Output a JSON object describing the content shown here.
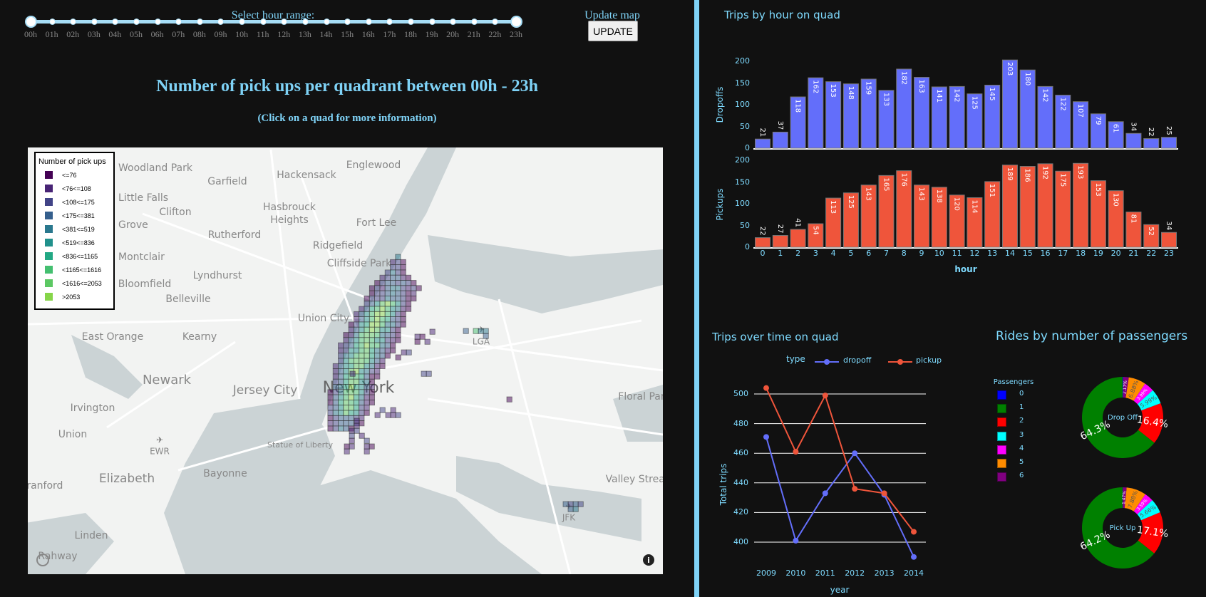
{
  "controls": {
    "slider_label": "Select hour range:",
    "hours": [
      "00h",
      "01h",
      "02h",
      "03h",
      "04h",
      "05h",
      "06h",
      "07h",
      "08h",
      "09h",
      "10h",
      "11h",
      "12h",
      "13h",
      "14h",
      "15h",
      "16h",
      "17h",
      "18h",
      "19h",
      "20h",
      "21h",
      "22h",
      "23h"
    ],
    "range": [
      "00h",
      "23h"
    ],
    "update_label": "Update map",
    "update_button": "UPDATE"
  },
  "map": {
    "title": "Number of pick ups per quadrant between 00h - 23h",
    "subtitle": "(Click on a quad for more information)",
    "legend": {
      "title": "Number of pick ups",
      "bins": [
        "<=76",
        "<76<=108",
        "<108<=175",
        "<175<=381",
        "<381<=519",
        "<519<=836",
        "<836<=1165",
        "<1165<=1616",
        "<1616<=2053",
        ">2053"
      ],
      "colors": [
        "#440154",
        "#482475",
        "#414487",
        "#355f8d",
        "#2a788e",
        "#21918c",
        "#22a884",
        "#44bf70",
        "#5cc863",
        "#86d549"
      ]
    },
    "places": [
      "Woodland Park",
      "Englewood",
      "Garfield",
      "Hackensack",
      "Little Falls",
      "Clifton",
      "Hasbrouck",
      "Heights",
      "Grove",
      "Fort Lee",
      "Rutherford",
      "Ridgefield",
      "Montclair",
      "Cliffside Park",
      "Lyndhurst",
      "Bloomfield",
      "Belleville",
      "Union City",
      "East Orange",
      "Kearny",
      "LGA",
      "Newark",
      "Jersey City",
      "New York",
      "Floral Park",
      "Irvington",
      "Union",
      "EWR",
      "Statue of Liberty",
      "Bayonne",
      "Elizabeth",
      "Valley Stream",
      "JFK",
      "Linden",
      "Rahway",
      "Cranford"
    ],
    "icons": [
      "airport-icon",
      "mapbox-logo-icon",
      "info-icon"
    ]
  },
  "chart_data": [
    {
      "type": "bar",
      "title": "Trips by hour on quad",
      "xlabel": "hour",
      "categories": [
        0,
        1,
        2,
        3,
        4,
        5,
        6,
        7,
        8,
        9,
        10,
        11,
        12,
        13,
        14,
        15,
        16,
        17,
        18,
        19,
        20,
        21,
        22,
        23
      ],
      "series": [
        {
          "name": "Dropoffs",
          "color": "#636efa",
          "values": [
            21,
            37,
            118,
            162,
            153,
            148,
            159,
            133,
            182,
            163,
            141,
            142,
            125,
            145,
            203,
            180,
            142,
            122,
            107,
            79,
            61,
            34,
            22,
            25
          ]
        },
        {
          "name": "Pickups",
          "color": "#ef553b",
          "values": [
            22,
            27,
            41,
            54,
            113,
            125,
            143,
            165,
            176,
            143,
            138,
            120,
            114,
            151,
            189,
            186,
            192,
            175,
            193,
            153,
            130,
            81,
            52,
            34
          ]
        }
      ],
      "ylim": [
        0,
        210
      ],
      "yticks": [
        0,
        50,
        100,
        150,
        200
      ]
    },
    {
      "type": "line",
      "title": "Trips over time on quad",
      "xlabel": "year",
      "ylabel": "Total trips",
      "legend_title": "type",
      "x": [
        2009,
        2010,
        2011,
        2012,
        2013,
        2014
      ],
      "series": [
        {
          "name": "dropoff",
          "color": "#636efa",
          "values": [
            471,
            401,
            433,
            460,
            432,
            390
          ]
        },
        {
          "name": "pickup",
          "color": "#ef553b",
          "values": [
            504,
            461,
            499,
            436,
            433,
            407
          ]
        }
      ],
      "ylim": [
        385,
        508
      ],
      "yticks": [
        400,
        420,
        440,
        460,
        480,
        500
      ],
      "grid": true,
      "legend_position": "top"
    },
    {
      "type": "pie",
      "title": "Rides by number of passengers",
      "legend_title": "Passengers",
      "categories": [
        "0",
        "1",
        "2",
        "3",
        "4",
        "5",
        "6"
      ],
      "colors": [
        "#0000ff",
        "#008000",
        "#ff0000",
        "#00ffff",
        "#ff00ff",
        "#ff8c00",
        "#800080"
      ],
      "donuts": [
        {
          "label": "Drop Off",
          "values": [
            0.27,
            64.3,
            16.4,
            5.99,
            3.99,
            6.88,
            2.17
          ],
          "text": [
            "",
            "64.3%",
            "16.4%",
            "5.99%",
            "3.99%",
            "6.88%",
            "2.17%"
          ]
        },
        {
          "label": "Pick Up",
          "values": [
            0.1,
            64.2,
            17.1,
            5.66,
            3.59,
            7.88,
            1.47
          ],
          "text": [
            "",
            "64.2%",
            "17.1%",
            "5.66%",
            "3.59%",
            "7.88%",
            "1.47%"
          ]
        }
      ]
    }
  ]
}
